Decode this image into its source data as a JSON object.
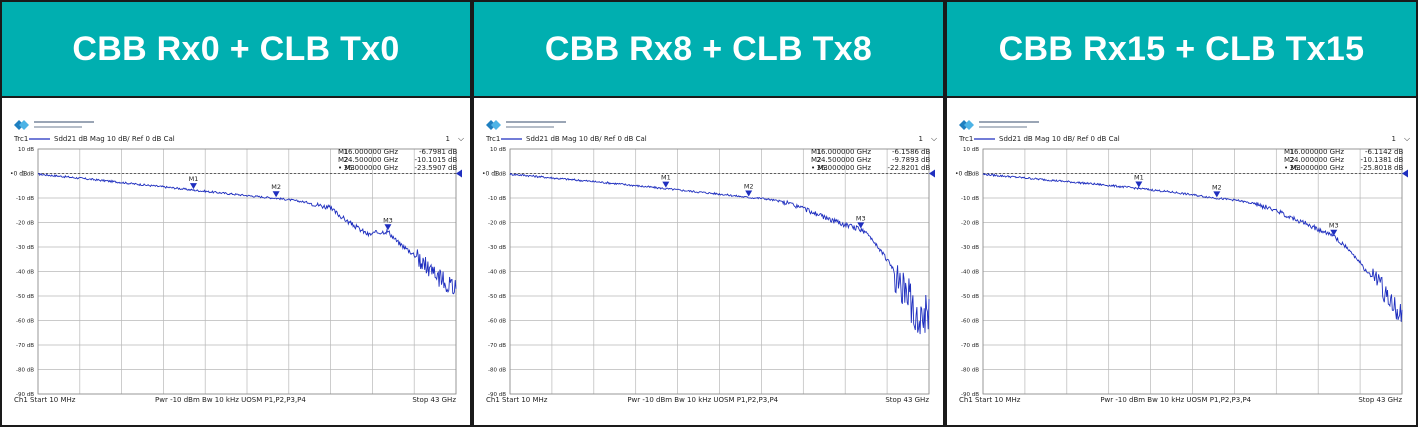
{
  "panels": [
    {
      "title": "CBB Rx0 + CLB Tx0",
      "vna": {
        "trace_id": "Trc1",
        "trace_label": "Sdd21",
        "format": "dB Mag",
        "scale": "10 dB/",
        "ref": "Ref 0 dB",
        "cal": "Cal",
        "channel_index": "1",
        "ref_level_label": "0 dB",
        "footer": {
          "ch": "Ch1",
          "start_label": "Start",
          "start": "10 MHz",
          "pwr_label": "Pwr",
          "pwr": "-10 dBm",
          "bw_label": "Bw",
          "bw": "10 kHz",
          "ports": "UOSM P1,P2,P3,P4",
          "stop_label": "Stop",
          "stop": "43 GHz"
        }
      },
      "markers": [
        {
          "name": "M1",
          "freq": "16.000000",
          "unit": "GHz",
          "value": "-6.7981",
          "db": "dB"
        },
        {
          "name": "M2",
          "freq": "24.500000",
          "unit": "GHz",
          "value": "-10.1015",
          "db": "dB"
        },
        {
          "name": "M3",
          "freq": "36.000000",
          "unit": "GHz",
          "value": "-23.5907",
          "db": "dB"
        }
      ]
    },
    {
      "title": "CBB Rx8 + CLB Tx8",
      "vna": {
        "trace_id": "Trc1",
        "trace_label": "Sdd21",
        "format": "dB Mag",
        "scale": "10 dB/",
        "ref": "Ref 0 dB",
        "cal": "Cal",
        "channel_index": "1",
        "ref_level_label": "0 dB",
        "footer": {
          "ch": "Ch1",
          "start_label": "Start",
          "start": "10 MHz",
          "pwr_label": "Pwr",
          "pwr": "-10 dBm",
          "bw_label": "Bw",
          "bw": "10 kHz",
          "ports": "UOSM P1,P2,P3,P4",
          "stop_label": "Stop",
          "stop": "43 GHz"
        }
      },
      "markers": [
        {
          "name": "M1",
          "freq": "16.000000",
          "unit": "GHz",
          "value": "-6.1586",
          "db": "dB"
        },
        {
          "name": "M2",
          "freq": "24.500000",
          "unit": "GHz",
          "value": "-9.7893",
          "db": "dB"
        },
        {
          "name": "M3",
          "freq": "36.000000",
          "unit": "GHz",
          "value": "-22.8201",
          "db": "dB"
        }
      ]
    },
    {
      "title": "CBB Rx15 + CLB Tx15",
      "vna": {
        "trace_id": "Trc1",
        "trace_label": "Sdd21",
        "format": "dB Mag",
        "scale": "10 dB/",
        "ref": "Ref 0 dB",
        "cal": "Cal",
        "channel_index": "1",
        "ref_level_label": "0 dB",
        "footer": {
          "ch": "Ch1",
          "start_label": "Start",
          "start": "10 MHz",
          "pwr_label": "Pwr",
          "pwr": "-10 dBm",
          "bw_label": "Bw",
          "bw": "10 kHz",
          "ports": "UOSM P1,P2,P3,P4",
          "stop_label": "Stop",
          "stop": "43 GHz"
        }
      },
      "markers": [
        {
          "name": "M1",
          "freq": "16.000000",
          "unit": "GHz",
          "value": "-6.1142",
          "db": "dB"
        },
        {
          "name": "M2",
          "freq": "24.000000",
          "unit": "GHz",
          "value": "-10.1381",
          "db": "dB"
        },
        {
          "name": "M3",
          "freq": "36.000000",
          "unit": "GHz",
          "value": "-25.8018",
          "db": "dB"
        }
      ]
    }
  ],
  "chart_data": [
    {
      "type": "line",
      "title": "CBB Rx0 + CLB Tx0",
      "xlabel": "",
      "ylabel": "",
      "xlim": [
        0.01,
        43
      ],
      "ylim": [
        -90,
        10
      ],
      "y_ticks": [
        "10 dB",
        "0 dB",
        "-10 dB",
        "-20 dB",
        "-30 dB",
        "-40 dB",
        "-50 dB",
        "-60 dB",
        "-70 dB",
        "-80 dB",
        "-90 dB"
      ],
      "grid": true,
      "series": [
        {
          "name": "Sdd21",
          "x": [
            0.01,
            2,
            4,
            6,
            8,
            10,
            12,
            14,
            16,
            18,
            20,
            22,
            24.5,
            26,
            28,
            30,
            31,
            32,
            33,
            34,
            35,
            36,
            37,
            38,
            39,
            40,
            41,
            42,
            43
          ],
          "y": [
            -0.3,
            -1.0,
            -1.8,
            -2.6,
            -3.4,
            -4.3,
            -5.1,
            -5.9,
            -6.8,
            -7.6,
            -8.4,
            -9.2,
            -10.1,
            -10.8,
            -12.0,
            -14.0,
            -17.0,
            -20.0,
            -22.5,
            -25.0,
            -24.0,
            -23.6,
            -28.0,
            -31.0,
            -34.0,
            -38.0,
            -42.0,
            -45.0,
            -47.0
          ]
        }
      ],
      "noise_region": {
        "x_start": 39,
        "x_end": 43,
        "y_spread_db": 8
      }
    },
    {
      "type": "line",
      "title": "CBB Rx8 + CLB Tx8",
      "xlabel": "",
      "ylabel": "",
      "xlim": [
        0.01,
        43
      ],
      "ylim": [
        -90,
        10
      ],
      "y_ticks": [
        "10 dB",
        "0 dB",
        "-10 dB",
        "-20 dB",
        "-30 dB",
        "-40 dB",
        "-50 dB",
        "-60 dB",
        "-70 dB",
        "-80 dB",
        "-90 dB"
      ],
      "grid": true,
      "series": [
        {
          "name": "Sdd21",
          "x": [
            0.01,
            2,
            4,
            6,
            8,
            10,
            12,
            14,
            16,
            18,
            20,
            22,
            24.5,
            26,
            28,
            30,
            32,
            34,
            36,
            37,
            38,
            39,
            40,
            41,
            42,
            43
          ],
          "y": [
            -0.3,
            -0.9,
            -1.7,
            -2.4,
            -3.1,
            -3.8,
            -4.6,
            -5.4,
            -6.2,
            -7.0,
            -7.8,
            -8.6,
            -9.8,
            -10.2,
            -11.5,
            -14.0,
            -17.5,
            -20.5,
            -22.8,
            -26.0,
            -31.0,
            -37.0,
            -44.0,
            -52.0,
            -58.0,
            -55.0
          ]
        }
      ],
      "noise_region": {
        "x_start": 39.5,
        "x_end": 43,
        "y_spread_db": 18
      }
    },
    {
      "type": "line",
      "title": "CBB Rx15 + CLB Tx15",
      "xlabel": "",
      "ylabel": "",
      "xlim": [
        0.01,
        43
      ],
      "ylim": [
        -90,
        10
      ],
      "y_ticks": [
        "10 dB",
        "0 dB",
        "-10 dB",
        "-20 dB",
        "-30 dB",
        "-40 dB",
        "-50 dB",
        "-60 dB",
        "-70 dB",
        "-80 dB",
        "-90 dB"
      ],
      "grid": true,
      "series": [
        {
          "name": "Sdd21",
          "x": [
            0.01,
            2,
            4,
            6,
            8,
            10,
            12,
            14,
            16,
            18,
            20,
            22,
            24,
            26,
            28,
            30,
            32,
            34,
            36,
            37,
            38,
            39,
            40,
            41,
            42,
            43
          ],
          "y": [
            -0.3,
            -1.0,
            -1.7,
            -2.4,
            -3.1,
            -3.8,
            -4.5,
            -5.3,
            -6.1,
            -7.0,
            -7.9,
            -9.0,
            -10.1,
            -10.9,
            -12.5,
            -15.0,
            -18.5,
            -22.0,
            -25.8,
            -29.0,
            -33.0,
            -38.0,
            -43.0,
            -47.0,
            -52.0,
            -58.0
          ]
        }
      ],
      "noise_region": {
        "x_start": 40,
        "x_end": 43,
        "y_spread_db": 10
      }
    }
  ]
}
